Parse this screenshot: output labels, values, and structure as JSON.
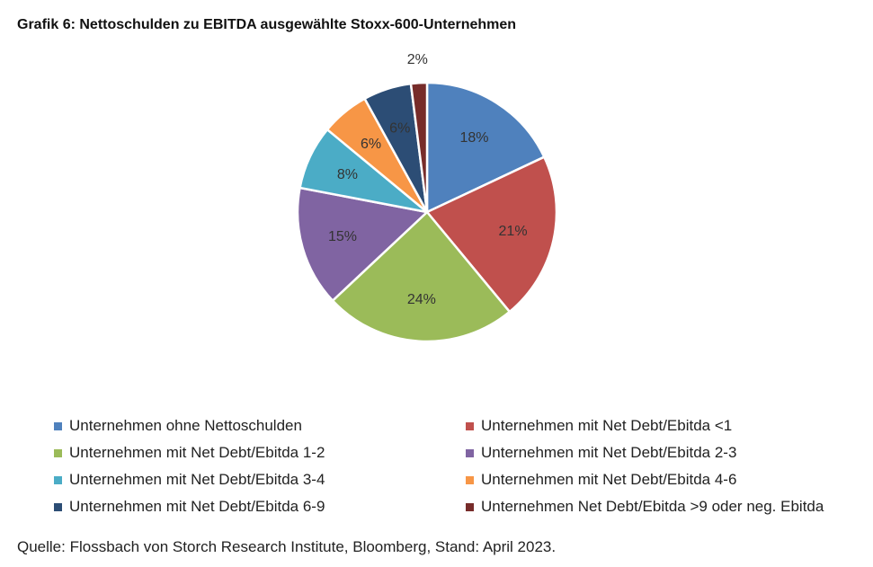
{
  "title": "Grafik 6: Nettoschulden zu EBITDA ausgewählte Stoxx-600-Unternehmen",
  "source": "Quelle: Flossbach von Storch Research Institute, Bloomberg, Stand: April 2023.",
  "chart_data": {
    "type": "pie",
    "title": "Grafik 6: Nettoschulden zu EBITDA ausgewählte Stoxx-600-Unternehmen",
    "unit": "%",
    "legend_position": "bottom",
    "slices": [
      {
        "name": "Unternehmen ohne Nettoschulden",
        "value": 18,
        "label": "18%",
        "color": "#4F81BD"
      },
      {
        "name": "Unternehmen mit Net Debt/Ebitda <1",
        "value": 21,
        "label": "21%",
        "color": "#C0504D"
      },
      {
        "name": "Unternehmen mit Net Debt/Ebitda 1-2",
        "value": 24,
        "label": "24%",
        "color": "#9BBB59"
      },
      {
        "name": "Unternehmen mit Net Debt/Ebitda 2-3",
        "value": 15,
        "label": "15%",
        "color": "#8064A2"
      },
      {
        "name": "Unternehmen mit Net Debt/Ebitda 3-4",
        "value": 8,
        "label": "8%",
        "color": "#4BACC6"
      },
      {
        "name": "Unternehmen mit Net Debt/Ebitda 4-6",
        "value": 6,
        "label": "6%",
        "color": "#F79646"
      },
      {
        "name": "Unternehmen mit Net Debt/Ebitda 6-9",
        "value": 6,
        "label": "6%",
        "color": "#2C4D75"
      },
      {
        "name": "Unternehmen Net Debt/Ebitda >9 oder neg. Ebitda",
        "value": 2,
        "label": "2%",
        "color": "#772C2A"
      }
    ]
  }
}
